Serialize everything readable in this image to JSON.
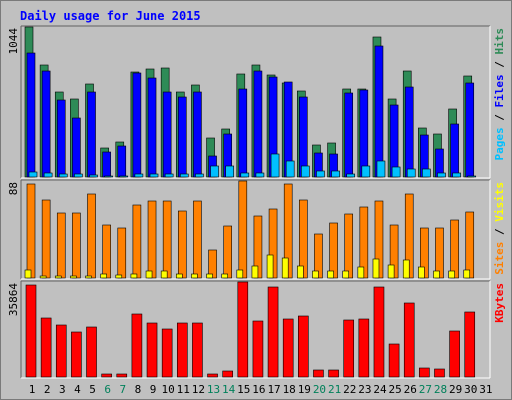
{
  "chart_data": {
    "type": "bar",
    "title": "Daily usage for June 2015",
    "categories": [
      "1",
      "2",
      "3",
      "4",
      "5",
      "6",
      "7",
      "8",
      "9",
      "10",
      "11",
      "12",
      "13",
      "14",
      "15",
      "16",
      "17",
      "18",
      "19",
      "20",
      "21",
      "22",
      "23",
      "24",
      "25",
      "26",
      "27",
      "28",
      "29",
      "30",
      "31"
    ],
    "weekend_days": [
      "6",
      "7",
      "13",
      "14",
      "20",
      "21",
      "27",
      "28"
    ],
    "colors": {
      "hits": "#2e8b57",
      "files": "#0000ff",
      "pages": "#00c0ff",
      "visits": "#ffff00",
      "sites": "#ff8000",
      "kbytes": "#ff0000",
      "weekday_label": "#000000",
      "weekend_label": "#00805a",
      "frame": "#c0c0c0",
      "title": "#0000ff"
    },
    "panels": [
      {
        "name": "hits-files-pages",
        "ymax_label": "1044",
        "ymax": 1044,
        "legend": [
          {
            "text": "Pages",
            "color": "#00c0ff"
          },
          {
            "text": " / ",
            "color": "#000000"
          },
          {
            "text": "Files",
            "color": "#0000ff"
          },
          {
            "text": " / ",
            "color": "#000000"
          },
          {
            "text": "Hits",
            "color": "#2e8b57"
          }
        ],
        "series": [
          {
            "name": "Hits",
            "color": "#2e8b57",
            "values": [
              1044,
              779,
              590,
              540,
              650,
              203,
              247,
              729,
              749,
              758,
              590,
              641,
              274,
              335,
              715,
              780,
              709,
              655,
              600,
              223,
              238,
              615,
              610,
              972,
              543,
              740,
              343,
              298,
              470,
              700,
              0
            ]
          },
          {
            "name": "Files",
            "color": "#0000ff",
            "values": [
              860,
              741,
              536,
              413,
              589,
              175,
              218,
              721,
              686,
              589,
              556,
              589,
              148,
              298,
              611,
              741,
              697,
              661,
              559,
              170,
              163,
              586,
              603,
              909,
              499,
              628,
              289,
              196,
              372,
              655,
              0
            ]
          },
          {
            "name": "Pages",
            "color": "#00c0ff",
            "values": [
              35,
              25,
              20,
              20,
              12,
              10,
              5,
              22,
              20,
              20,
              24,
              18,
              74,
              74,
              25,
              28,
              163,
              111,
              74,
              40,
              40,
              20,
              76,
              111,
              70,
              55,
              55,
              30,
              25,
              10,
              0
            ]
          }
        ]
      },
      {
        "name": "visits-sites",
        "ymax_label": "88",
        "ymax": 88,
        "legend": [
          {
            "text": "Sites",
            "color": "#ff8000"
          },
          {
            "text": " / ",
            "color": "#000000"
          },
          {
            "text": "Visits",
            "color": "#ffff00"
          }
        ],
        "series": [
          {
            "name": "Sites",
            "color": "#ff8000",
            "values": [
              85,
              71,
              59,
              59,
              76,
              48,
              45,
              66,
              70,
              70,
              61,
              70,
              25,
              47,
              88,
              56,
              63,
              85,
              71,
              40,
              50,
              58,
              64,
              70,
              48,
              76,
              45,
              45,
              53,
              60,
              0
            ]
          },
          {
            "name": "Visits",
            "color": "#ffff00",
            "values": [
              7,
              2,
              2,
              2,
              2,
              4,
              3,
              4,
              6,
              6,
              4,
              4,
              4,
              4,
              7,
              11,
              21,
              18,
              11,
              6,
              6,
              6,
              10,
              17,
              12,
              16,
              10,
              6,
              6,
              7,
              0
            ]
          }
        ]
      },
      {
        "name": "kbytes",
        "ymax_label": "35864",
        "ymax": 35864,
        "legend": [
          {
            "text": "KBytes",
            "color": "#ff0000"
          }
        ],
        "series": [
          {
            "name": "KBytes",
            "color": "#ff0000",
            "values": [
              34700,
              22100,
              19500,
              17000,
              18700,
              1290,
              1290,
              23900,
              20500,
              18000,
              20500,
              20500,
              1290,
              2330,
              35864,
              21000,
              33800,
              21800,
              23000,
              2500,
              2500,
              21400,
              21800,
              33800,
              12500,
              27800,
              3400,
              2870,
              17300,
              24500,
              0
            ]
          }
        ]
      }
    ]
  }
}
